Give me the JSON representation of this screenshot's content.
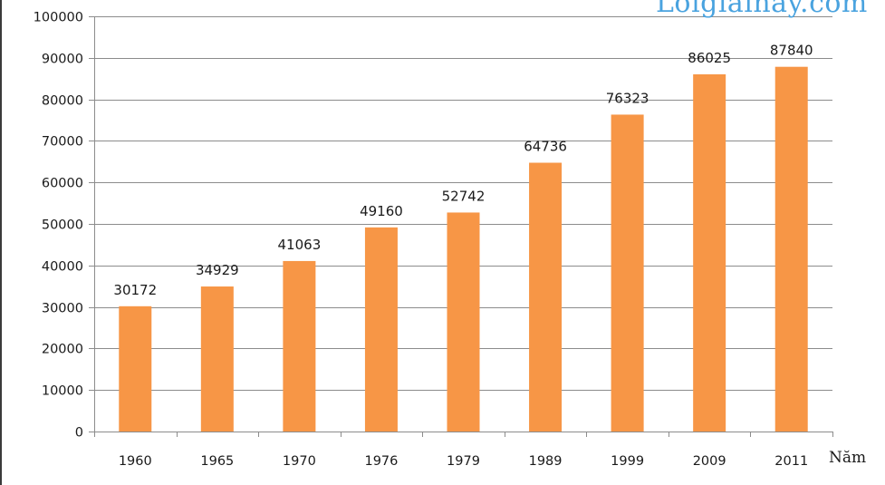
{
  "watermark": {
    "text": "Loigiaihay.com"
  },
  "colors": {
    "bar": "#f79646",
    "grid": "#8c8c8c",
    "axis": "#8c8c8c",
    "text": "#1a1a1a",
    "watermark": "#4aa3df"
  },
  "chart_data": {
    "type": "bar",
    "title": "",
    "xlabel": "Năm",
    "ylabel": "",
    "categories": [
      "1960",
      "1965",
      "1970",
      "1976",
      "1979",
      "1989",
      "1999",
      "2009",
      "2011"
    ],
    "values": [
      30172,
      34929,
      41063,
      49160,
      52742,
      64736,
      76323,
      86025,
      87840
    ],
    "data_labels": [
      "30172",
      "34929",
      "41063",
      "49160",
      "52742",
      "64736",
      "76323",
      "86025",
      "87840"
    ],
    "ylim": [
      0,
      100000
    ],
    "yticks": [
      0,
      10000,
      20000,
      30000,
      40000,
      50000,
      60000,
      70000,
      80000,
      90000,
      100000
    ],
    "ytick_labels": [
      "0",
      "10000",
      "20000",
      "30000",
      "40000",
      "50000",
      "60000",
      "70000",
      "80000",
      "90000",
      "100000"
    ],
    "grid": true,
    "legend": "none"
  }
}
